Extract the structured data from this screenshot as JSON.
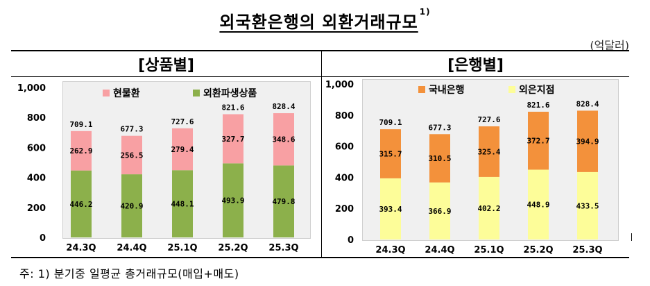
{
  "title": "외국환은행의 외환거래규모",
  "title_footnote_mark": "1)",
  "unit_label": "(억달러)",
  "footnote": "주: 1) 분기중 일평균 총거래규모(매입+매도)",
  "chart_data": [
    {
      "type": "bar",
      "stacked": true,
      "panel_title": "[상품별]",
      "categories": [
        "24.3Q",
        "24.4Q",
        "25.1Q",
        "25.2Q",
        "25.3Q"
      ],
      "ylim": [
        0,
        1000
      ],
      "yticks": [
        "0",
        "200",
        "400",
        "600",
        "800",
        "1,000"
      ],
      "grid": false,
      "legend_position": "top",
      "series": [
        {
          "name": "외환파생상품",
          "color": "#8cb04b",
          "values": [
            446.2,
            420.9,
            448.1,
            493.9,
            479.8
          ],
          "labels": [
            "446.2",
            "420.9",
            "448.1",
            "493.9",
            "479.8"
          ]
        },
        {
          "name": "현물환",
          "color": "#f8a0a3",
          "values": [
            262.9,
            256.5,
            279.4,
            327.7,
            348.6
          ],
          "labels": [
            "262.9",
            "256.5",
            "279.4",
            "327.7",
            "348.6"
          ]
        }
      ],
      "totals": [
        "709.1",
        "677.3",
        "727.6",
        "821.6",
        "828.4"
      ],
      "legend_order": [
        1,
        0
      ]
    },
    {
      "type": "bar",
      "stacked": true,
      "panel_title": "[은행별]",
      "categories": [
        "24.3Q",
        "24.4Q",
        "25.1Q",
        "25.2Q",
        "25.3Q"
      ],
      "ylim": [
        0,
        1000
      ],
      "yticks": [
        "0",
        "200",
        "400",
        "600",
        "800",
        "1,000"
      ],
      "grid": false,
      "legend_position": "top",
      "series": [
        {
          "name": "외은지점",
          "color": "#fdfd99",
          "values": [
            393.4,
            366.9,
            402.2,
            448.9,
            433.5
          ],
          "labels": [
            "393.4",
            "366.9",
            "402.2",
            "448.9",
            "433.5"
          ]
        },
        {
          "name": "국내은행",
          "color": "#f3913b",
          "values": [
            315.7,
            310.5,
            325.4,
            372.7,
            394.9
          ],
          "labels": [
            "315.7",
            "310.5",
            "325.4",
            "372.7",
            "394.9"
          ]
        }
      ],
      "totals": [
        "709.1",
        "677.3",
        "727.6",
        "821.6",
        "828.4"
      ],
      "legend_order": [
        1,
        0
      ]
    }
  ]
}
